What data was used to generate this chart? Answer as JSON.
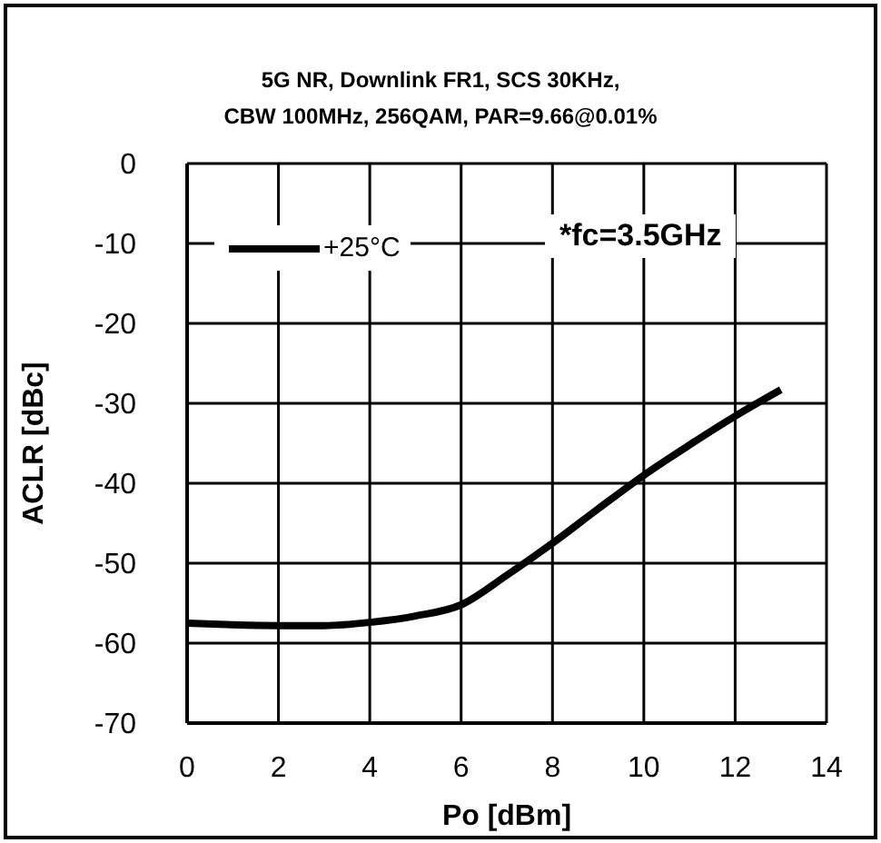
{
  "chart_data": {
    "type": "line",
    "title": "5G NR, Downlink FR1,  SCS 30KHz,\nCBW 100MHz, 256QAM, PAR=9.66@0.01%",
    "xlabel": "Po [dBm]",
    "ylabel": "ACLR [dBc]",
    "x": [
      0,
      1,
      2,
      3,
      4,
      5,
      6,
      7,
      8,
      9,
      10,
      11,
      12,
      13
    ],
    "series": [
      {
        "name": "+25°C",
        "color": "#000000",
        "values": [
          -57.5,
          -57.7,
          -57.8,
          -57.8,
          -57.4,
          -56.6,
          -55.2,
          -51.5,
          -47.5,
          -43.2,
          -39,
          -35.2,
          -31.6,
          -28.3
        ]
      }
    ],
    "xlim": [
      0,
      14
    ],
    "xticks": [
      0,
      2,
      4,
      6,
      8,
      10,
      12,
      14
    ],
    "ylim": [
      -70,
      0
    ],
    "yticks": [
      -70,
      -60,
      -50,
      -40,
      -30,
      -20,
      -10,
      0
    ],
    "grid": true,
    "legend": "top left",
    "marker": "none",
    "line_style": "solid",
    "annotations": [
      "*fc=3.5GHz"
    ]
  }
}
